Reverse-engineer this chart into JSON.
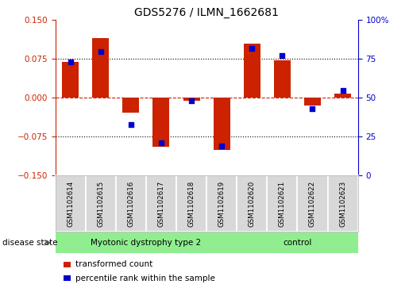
{
  "title": "GDS5276 / ILMN_1662681",
  "samples": [
    "GSM1102614",
    "GSM1102615",
    "GSM1102616",
    "GSM1102617",
    "GSM1102618",
    "GSM1102619",
    "GSM1102620",
    "GSM1102621",
    "GSM1102622",
    "GSM1102623"
  ],
  "red_bars": [
    0.069,
    0.115,
    -0.028,
    -0.095,
    -0.005,
    -0.1,
    0.105,
    0.072,
    -0.015,
    0.008
  ],
  "blue_dots": [
    73,
    80,
    33,
    21,
    48,
    19,
    82,
    77,
    43,
    55
  ],
  "ylim_left": [
    -0.15,
    0.15
  ],
  "ylim_right": [
    0,
    100
  ],
  "yticks_left": [
    -0.15,
    -0.075,
    0,
    0.075,
    0.15
  ],
  "yticks_right": [
    0,
    25,
    50,
    75,
    100
  ],
  "ytick_labels_right": [
    "0",
    "25",
    "50",
    "75",
    "100%"
  ],
  "disease_groups": [
    {
      "label": "Myotonic dystrophy type 2",
      "start": 0,
      "end": 6,
      "color": "#90EE90"
    },
    {
      "label": "control",
      "start": 6,
      "end": 10,
      "color": "#90EE90"
    }
  ],
  "bar_color": "#CC2200",
  "dot_color": "#0000CC",
  "bar_width": 0.55,
  "dot_size": 18,
  "legend_items": [
    {
      "label": "transformed count",
      "color": "#CC2200"
    },
    {
      "label": "percentile rank within the sample",
      "color": "#0000CC"
    }
  ],
  "background_color": "#FFFFFF",
  "sample_box_color": "#D8D8D8",
  "disease_state_label": "disease state",
  "left_axis_color": "#CC2200",
  "right_axis_color": "#0000CC"
}
